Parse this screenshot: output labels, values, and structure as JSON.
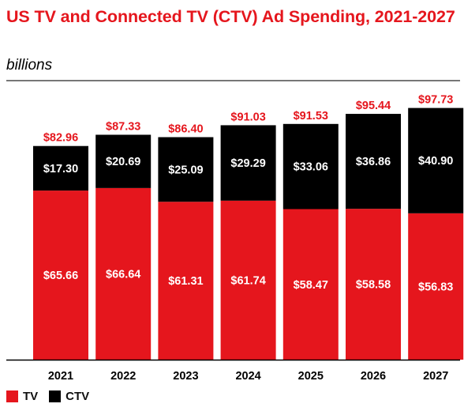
{
  "title": "US TV and Connected TV (CTV) Ad Spending, 2021-2027",
  "subtitle": "billions",
  "colors": {
    "TV": "#e5161d",
    "CTV": "#000000",
    "accent": "#e5161d"
  },
  "legend": [
    {
      "name": "TV",
      "color": "#e5161d"
    },
    {
      "name": "CTV",
      "color": "#000000"
    }
  ],
  "chart_data": {
    "type": "bar",
    "stacked": true,
    "categories": [
      "2021",
      "2022",
      "2023",
      "2024",
      "2025",
      "2026",
      "2027"
    ],
    "series": [
      {
        "name": "TV",
        "values": [
          65.66,
          66.64,
          61.31,
          61.74,
          58.47,
          58.58,
          56.83
        ],
        "labels": [
          "$65.66",
          "$66.64",
          "$61.31",
          "$61.74",
          "$58.47",
          "$58.58",
          "$56.83"
        ]
      },
      {
        "name": "CTV",
        "values": [
          17.3,
          20.69,
          25.09,
          29.29,
          33.06,
          36.86,
          40.9
        ],
        "labels": [
          "$17.30",
          "$20.69",
          "$25.09",
          "$29.29",
          "$33.06",
          "$36.86",
          "$40.90"
        ]
      }
    ],
    "totals": [
      82.96,
      87.33,
      86.4,
      91.03,
      91.53,
      95.44,
      97.73
    ],
    "total_labels": [
      "$82.96",
      "$87.33",
      "$86.40",
      "$91.03",
      "$91.53",
      "$95.44",
      "$97.73"
    ],
    "title": "US TV and Connected TV (CTV) Ad Spending, 2021-2027",
    "ylabel": "billions",
    "xlabel": "",
    "ylim": [
      0,
      100
    ],
    "grid": false,
    "legend_position": "bottom-left"
  }
}
